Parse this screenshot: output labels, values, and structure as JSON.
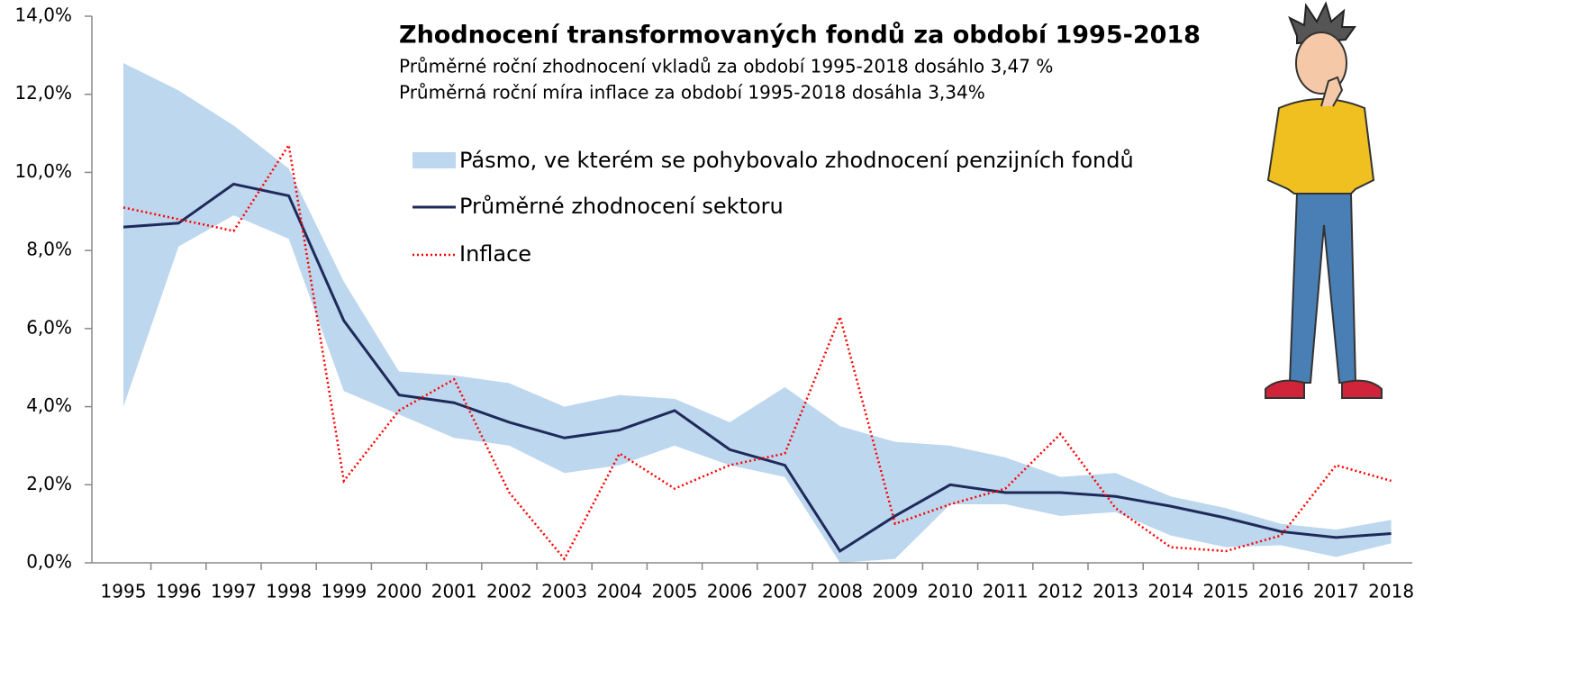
{
  "chart_data": {
    "type": "line",
    "title": "Zhodnocení transformovaných fondů za období 1995-2018",
    "subtitle": [
      "Průměrné roční zhodnocení vkladů za období 1995-2018 dosáhlo 3,47 %",
      "Průměrná roční míra inflace za období 1995-2018 dosáhla 3,34%"
    ],
    "categories": [
      "1995",
      "1996",
      "1997",
      "1998",
      "1999",
      "2000",
      "2001",
      "2002",
      "2003",
      "2004",
      "2005",
      "2006",
      "2007",
      "2008",
      "2009",
      "2010",
      "2011",
      "2012",
      "2013",
      "2014",
      "2015",
      "2016",
      "2017",
      "2018"
    ],
    "band": {
      "name": "Pásmo, ve kterém se pohybovalo zhodnocení penzijních fondů",
      "color": "#bdd7ee",
      "upper": [
        12.8,
        12.1,
        11.2,
        10.1,
        7.2,
        4.9,
        4.8,
        4.6,
        4.0,
        4.3,
        4.2,
        3.6,
        4.5,
        3.5,
        3.1,
        3.0,
        2.7,
        2.2,
        2.3,
        1.7,
        1.4,
        1.0,
        0.85,
        1.1
      ],
      "lower": [
        4.0,
        8.1,
        8.9,
        8.3,
        4.4,
        3.8,
        3.2,
        3.0,
        2.3,
        2.5,
        3.0,
        2.5,
        2.2,
        0.0,
        0.1,
        1.5,
        1.5,
        1.2,
        1.3,
        0.7,
        0.4,
        0.45,
        0.15,
        0.5
      ]
    },
    "series": [
      {
        "name": "Průměrné zhodnocení sektoru",
        "color": "#1f2a5a",
        "style": "solid",
        "values": [
          8.6,
          8.7,
          9.7,
          9.4,
          6.2,
          4.3,
          4.1,
          3.6,
          3.2,
          3.4,
          3.9,
          2.9,
          2.5,
          0.3,
          1.2,
          2.0,
          1.8,
          1.8,
          1.7,
          1.45,
          1.15,
          0.8,
          0.65,
          0.75
        ]
      },
      {
        "name": "Inflace",
        "color": "#ff0000",
        "style": "dotted",
        "values": [
          9.1,
          8.8,
          8.5,
          10.7,
          2.1,
          3.9,
          4.7,
          1.8,
          0.1,
          2.8,
          1.9,
          2.5,
          2.8,
          6.3,
          1.0,
          1.5,
          1.9,
          3.3,
          1.4,
          0.4,
          0.3,
          0.7,
          2.5,
          2.1
        ]
      }
    ],
    "ylim": [
      0,
      14
    ],
    "yticks": [
      {
        "value": 0,
        "label": "0,0%"
      },
      {
        "value": 2,
        "label": "2,0%"
      },
      {
        "value": 4,
        "label": "4,0%"
      },
      {
        "value": 6,
        "label": "6,0%"
      },
      {
        "value": 8,
        "label": "8,0%"
      },
      {
        "value": 10,
        "label": "10,0%"
      },
      {
        "value": 12,
        "label": "12,0%"
      },
      {
        "value": 14,
        "label": "14,0%"
      }
    ],
    "grid": false
  }
}
